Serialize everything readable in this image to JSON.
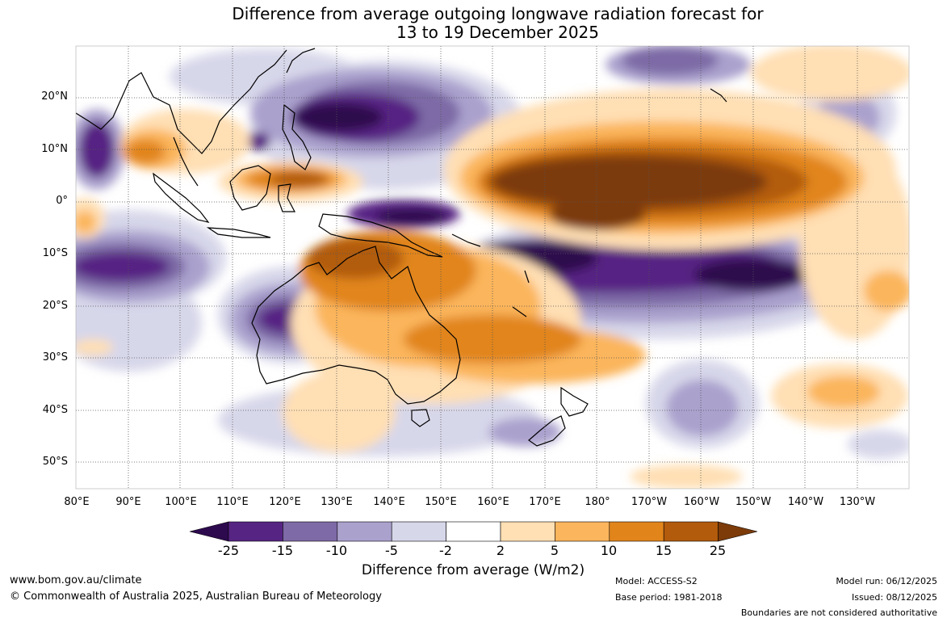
{
  "title": {
    "line1": "Difference from average outgoing longwave radiation forecast for",
    "line2": "13 to 19 December 2025"
  },
  "map": {
    "latitude_labels": [
      "20°N",
      "10°N",
      "0°",
      "10°S",
      "20°S",
      "30°S",
      "40°S",
      "50°S"
    ],
    "longitude_labels": [
      "80°E",
      "90°E",
      "100°E",
      "110°E",
      "120°E",
      "130°E",
      "140°E",
      "150°E",
      "160°E",
      "170°E",
      "180°",
      "170°W",
      "160°W",
      "150°W",
      "140°W",
      "130°W"
    ]
  },
  "colorbar": {
    "ticks": [
      "-25",
      "-15",
      "-10",
      "-5",
      "-2",
      "2",
      "5",
      "10",
      "15",
      "25"
    ],
    "colors": [
      "#2d0a4e",
      "#562483",
      "#7d6aa6",
      "#aaa1cd",
      "#d7d7ea",
      "#ffffff",
      "#ffdfb4",
      "#fbb55c",
      "#e1851b",
      "#b25b0d",
      "#7c3b09"
    ],
    "label": "Difference from average (W/m2)"
  },
  "footer": {
    "website": "www.bom.gov.au/climate",
    "copyright": "© Commonwealth of Australia 2025, Australian Bureau of Meteorology",
    "model": "Model: ACCESS-S2",
    "base_period": "Base period: 1981-2018",
    "model_run": "Model run: 06/12/2025",
    "issued": "Issued: 08/12/2025",
    "disclaimer": "Boundaries are not considered authoritative"
  }
}
